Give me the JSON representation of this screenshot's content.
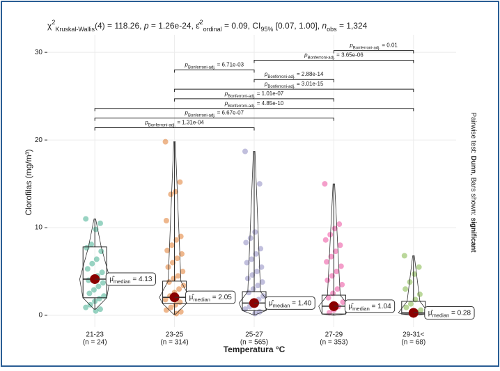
{
  "chart_data": {
    "type": "violin-box",
    "subtitle_parts": [
      {
        "t": "χ",
        "s": "normal"
      },
      {
        "t": "2",
        "s": "sup"
      },
      {
        "t": "Kruskal-Wallis",
        "s": "sub"
      },
      {
        "t": "(4) = 118.26, ",
        "s": "normal"
      },
      {
        "t": "p",
        "s": "italic"
      },
      {
        "t": " = 1.26e-24, ",
        "s": "normal"
      },
      {
        "t": "ε̂",
        "s": "normal"
      },
      {
        "t": "2",
        "s": "sup"
      },
      {
        "t": "ordinal",
        "s": "sub"
      },
      {
        "t": " = 0.09, CI",
        "s": "normal"
      },
      {
        "t": "95%",
        "s": "sub"
      },
      {
        "t": " [0.07, 1.00], ",
        "s": "normal"
      },
      {
        "t": "n",
        "s": "italic"
      },
      {
        "t": "obs",
        "s": "sub"
      },
      {
        "t": " = 1,324",
        "s": "normal"
      }
    ],
    "caption_parts": [
      {
        "t": "Pairwise test: ",
        "s": "normal"
      },
      {
        "t": "Dunn",
        "s": "bold"
      },
      {
        "t": ", Bars shown: ",
        "s": "normal"
      },
      {
        "t": "significant",
        "s": "bold"
      }
    ],
    "ylabel": "Clorofilas (mg/m³)",
    "xlabel": "Temperatura °C",
    "categories": [
      "21-23",
      "23-25",
      "25-27",
      "27-29",
      "29-31<"
    ],
    "n_labels": [
      "(n = 24)",
      "(n = 314)",
      "(n = 565)",
      "(n = 353)",
      "(n = 68)"
    ],
    "colors": [
      "#1B9E77",
      "#D95F02",
      "#7570B3",
      "#E7298A",
      "#66A61E"
    ],
    "ylim": [
      -1.35,
      32
    ],
    "yticks": [
      0,
      10,
      20,
      30
    ],
    "grid": true,
    "points": [
      [
        11,
        10.5,
        9.8,
        8.1,
        7.7,
        7.3,
        6.4,
        5.9,
        5.3,
        4.9,
        4.5,
        4.2,
        4.0,
        3.7,
        3.3,
        2.9,
        2.5,
        2.2,
        1.9,
        1.6,
        1.2,
        0.9,
        0.7,
        0.5
      ],
      [
        19.8,
        15.2,
        14.1,
        13.8,
        10.8,
        9.0,
        8.6,
        8.0,
        7.4,
        7.0,
        6.5,
        6.0,
        5.5,
        5.0,
        4.5,
        4.2,
        3.8,
        3.4,
        3.0,
        2.6,
        2.2,
        1.8,
        1.5,
        1.2,
        0.9,
        0.6,
        0.4,
        0.2
      ],
      [
        18.7,
        15.0,
        9.5,
        8.8,
        8.3,
        7.6,
        7.0,
        6.4,
        6.0,
        5.5,
        5.0,
        4.6,
        4.2,
        3.8,
        3.4,
        3.0,
        2.6,
        2.2,
        1.8,
        1.4,
        1.0,
        0.7,
        0.4,
        0.2
      ],
      [
        15.0,
        10.4,
        9.9,
        9.2,
        8.6,
        8.0,
        7.3,
        6.7,
        6.1,
        5.6,
        5.0,
        4.5,
        4.0,
        3.5,
        3.0,
        2.5,
        2.0,
        1.5,
        1.0,
        0.6,
        0.3
      ],
      [
        6.8,
        5.5,
        4.7,
        3.8,
        3.0,
        2.4,
        1.8,
        1.3,
        0.9,
        0.6,
        0.4,
        0.2
      ]
    ],
    "boxes": [
      {
        "low": 0.7,
        "q1": 2.0,
        "median": 4.13,
        "q3": 7.8,
        "high": 11.0
      },
      {
        "low": 0.1,
        "q1": 1.35,
        "median": 2.05,
        "q3": 3.9,
        "high": 19.8
      },
      {
        "low": 0.05,
        "q1": 0.55,
        "median": 1.4,
        "q3": 2.7,
        "high": 18.7
      },
      {
        "low": 0.0,
        "q1": 0.15,
        "median": 1.04,
        "q3": 2.3,
        "high": 15.0
      },
      {
        "low": 0.0,
        "q1": 0.15,
        "median": 0.28,
        "q3": 1.6,
        "high": 6.8
      }
    ],
    "centers": [
      4.13,
      2.05,
      1.4,
      1.04,
      0.28
    ],
    "center_labels": [
      "4.13",
      "2.05",
      "1.40",
      "1.04",
      "0.28"
    ],
    "center_label_parts": [
      "μ̂",
      "median",
      " = "
    ],
    "p_label_parts": [
      "p",
      "Bonferroni-adj.",
      " = "
    ],
    "comparisons": [
      {
        "pair": [
          0,
          2
        ],
        "p": "1.31e-04"
      },
      {
        "pair": [
          0,
          3
        ],
        "p": "6.67e-07"
      },
      {
        "pair": [
          0,
          4
        ],
        "p": "4.85e-10"
      },
      {
        "pair": [
          1,
          3
        ],
        "p": "1.01e-07"
      },
      {
        "pair": [
          1,
          4
        ],
        "p": "3.01e-15"
      },
      {
        "pair": [
          2,
          3
        ],
        "p": "2.88e-14"
      },
      {
        "pair": [
          1,
          2
        ],
        "p": "6.71e-03"
      },
      {
        "pair": [
          2,
          4
        ],
        "p": "3.65e-06"
      },
      {
        "pair": [
          3,
          4
        ],
        "p": "0.01"
      }
    ]
  }
}
